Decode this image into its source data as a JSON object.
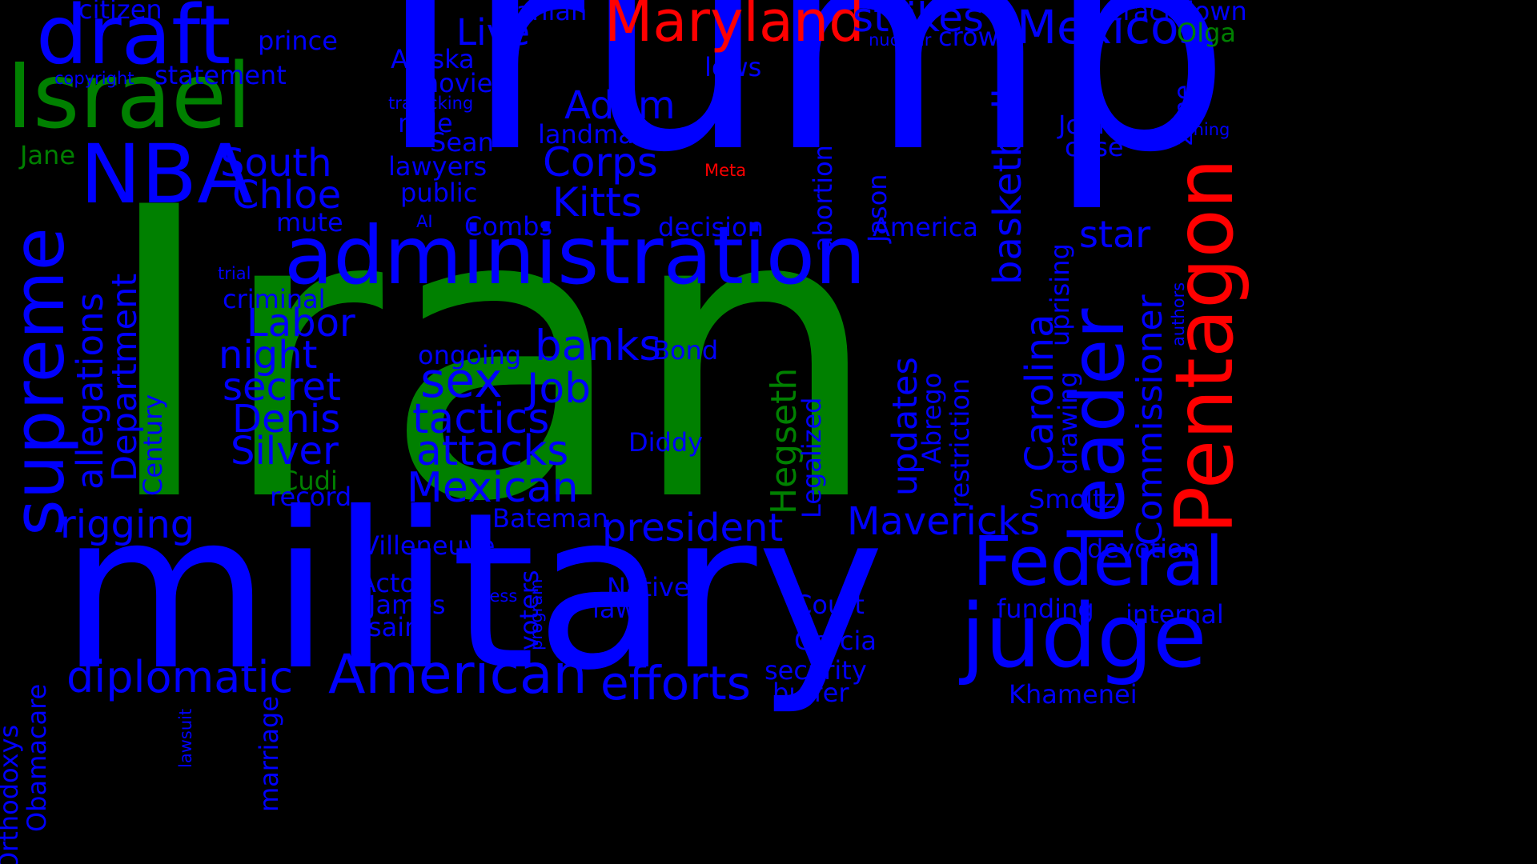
{
  "colors": {
    "background": "#000000",
    "blue": "#0000FF",
    "green": "#008000",
    "red": "#FF0000"
  },
  "words": [
    {
      "text": "Trump",
      "color": "blue"
    },
    {
      "text": "Iran",
      "color": "green"
    },
    {
      "text": "military",
      "color": "blue"
    },
    {
      "text": "administration",
      "color": "blue"
    },
    {
      "text": "Israel",
      "color": "green"
    },
    {
      "text": "draft",
      "color": "blue"
    },
    {
      "text": "NBA",
      "color": "blue"
    },
    {
      "text": "Maryland",
      "color": "red"
    },
    {
      "text": "Pentagon",
      "color": "red",
      "vertical": true
    },
    {
      "text": "supreme",
      "color": "blue",
      "vertical": true
    },
    {
      "text": "leader",
      "color": "blue",
      "vertical": true
    },
    {
      "text": "judge",
      "color": "blue"
    },
    {
      "text": "Federal",
      "color": "blue"
    },
    {
      "text": "American",
      "color": "blue"
    },
    {
      "text": "efforts",
      "color": "blue"
    },
    {
      "text": "diplomatic",
      "color": "blue"
    },
    {
      "text": "Mexicos",
      "color": "blue"
    },
    {
      "text": "strikes",
      "color": "blue"
    },
    {
      "text": "basketball",
      "color": "blue",
      "vertical": true
    },
    {
      "text": "Commissioner",
      "color": "blue",
      "vertical": true
    },
    {
      "text": "Carolina",
      "color": "blue",
      "vertical": true
    },
    {
      "text": "allegations",
      "color": "blue",
      "vertical": true
    },
    {
      "text": "Department",
      "color": "blue",
      "vertical": true
    },
    {
      "text": "updates",
      "color": "blue",
      "vertical": true
    },
    {
      "text": "Hegseth",
      "color": "green",
      "vertical": true
    },
    {
      "text": "sex",
      "color": "blue"
    },
    {
      "text": "Job",
      "color": "blue"
    },
    {
      "text": "attacks",
      "color": "blue"
    },
    {
      "text": "tactics",
      "color": "blue"
    },
    {
      "text": "Mexican",
      "color": "blue"
    },
    {
      "text": "banks",
      "color": "blue"
    },
    {
      "text": "president",
      "color": "blue"
    },
    {
      "text": "Mavericks",
      "color": "blue"
    },
    {
      "text": "Chloe",
      "color": "blue"
    },
    {
      "text": "South",
      "color": "blue"
    },
    {
      "text": "Labor",
      "color": "blue"
    },
    {
      "text": "night",
      "color": "blue"
    },
    {
      "text": "secret",
      "color": "blue"
    },
    {
      "text": "Denis",
      "color": "blue"
    },
    {
      "text": "Silver",
      "color": "blue"
    },
    {
      "text": "rigging",
      "color": "blue"
    },
    {
      "text": "Adam",
      "color": "blue"
    },
    {
      "text": "Corps",
      "color": "blue"
    },
    {
      "text": "Kitts",
      "color": "blue"
    },
    {
      "text": "Live",
      "color": "blue"
    },
    {
      "text": "star",
      "color": "blue"
    },
    {
      "text": "citizen",
      "color": "blue"
    },
    {
      "text": "prince",
      "color": "blue"
    },
    {
      "text": "statement",
      "color": "blue"
    },
    {
      "text": "copyright",
      "color": "blue"
    },
    {
      "text": "Jane",
      "color": "green"
    },
    {
      "text": "Iranian",
      "color": "blue"
    },
    {
      "text": "Alaska",
      "color": "blue"
    },
    {
      "text": "movie",
      "color": "blue"
    },
    {
      "text": "trafficking",
      "color": "blue"
    },
    {
      "text": "mile",
      "color": "blue"
    },
    {
      "text": "Sean",
      "color": "blue"
    },
    {
      "text": "lawyers",
      "color": "blue"
    },
    {
      "text": "public",
      "color": "blue"
    },
    {
      "text": "landmark",
      "color": "blue"
    },
    {
      "text": "lows",
      "color": "blue"
    },
    {
      "text": "nuclear",
      "color": "blue"
    },
    {
      "text": "crown",
      "color": "blue"
    },
    {
      "text": "crackdown",
      "color": "blue"
    },
    {
      "text": "Olga",
      "color": "green"
    },
    {
      "text": "zone",
      "color": "blue",
      "vertical": true
    },
    {
      "text": "training",
      "color": "blue"
    },
    {
      "text": "John",
      "color": "blue"
    },
    {
      "text": "case",
      "color": "blue"
    },
    {
      "text": "Meta",
      "color": "red"
    },
    {
      "text": "abortion",
      "color": "blue",
      "vertical": true
    },
    {
      "text": "Jason",
      "color": "blue",
      "vertical": true
    },
    {
      "text": "mute",
      "color": "blue"
    },
    {
      "text": "AI",
      "color": "blue"
    },
    {
      "text": "Combs",
      "color": "blue"
    },
    {
      "text": "decision",
      "color": "blue"
    },
    {
      "text": "America",
      "color": "blue"
    },
    {
      "text": "authors",
      "color": "blue",
      "vertical": true
    },
    {
      "text": "uprising",
      "color": "blue",
      "vertical": true
    },
    {
      "text": "drawing",
      "color": "blue",
      "vertical": true
    },
    {
      "text": "trial",
      "color": "blue"
    },
    {
      "text": "criminal",
      "color": "blue"
    },
    {
      "text": "Century",
      "color": "blue",
      "vertical": true
    },
    {
      "text": "ongoing",
      "color": "blue"
    },
    {
      "text": "Bond",
      "color": "blue"
    },
    {
      "text": "Legalized",
      "color": "blue",
      "vertical": true
    },
    {
      "text": "Abrego",
      "color": "blue",
      "vertical": true
    },
    {
      "text": "restriction",
      "color": "blue",
      "vertical": true
    },
    {
      "text": "Diddy",
      "color": "blue"
    },
    {
      "text": "Cudi",
      "color": "green"
    },
    {
      "text": "record",
      "color": "blue"
    },
    {
      "text": "Smoltz",
      "color": "blue"
    },
    {
      "text": "Bateman",
      "color": "blue"
    },
    {
      "text": "Villeneuve",
      "color": "blue"
    },
    {
      "text": "devotion",
      "color": "blue"
    },
    {
      "text": "Actor",
      "color": "blue"
    },
    {
      "text": "James",
      "color": "blue"
    },
    {
      "text": "saint",
      "color": "blue"
    },
    {
      "text": "Native",
      "color": "blue"
    },
    {
      "text": "law",
      "color": "blue"
    },
    {
      "text": "press",
      "color": "blue"
    },
    {
      "text": "voters",
      "color": "blue",
      "vertical": true
    },
    {
      "text": "program",
      "color": "blue",
      "vertical": true
    },
    {
      "text": "Court",
      "color": "blue"
    },
    {
      "text": "Garcia",
      "color": "blue"
    },
    {
      "text": "security",
      "color": "blue"
    },
    {
      "text": "buffer",
      "color": "blue"
    },
    {
      "text": "funding",
      "color": "blue"
    },
    {
      "text": "internal",
      "color": "blue"
    },
    {
      "text": "Khamenei",
      "color": "blue"
    },
    {
      "text": "Orthodoxys",
      "color": "blue",
      "vertical": true
    },
    {
      "text": "Obamacare",
      "color": "blue",
      "vertical": true
    },
    {
      "text": "marriage",
      "color": "blue",
      "vertical": true
    },
    {
      "text": "lawsuit",
      "color": "blue",
      "vertical": true
    }
  ]
}
